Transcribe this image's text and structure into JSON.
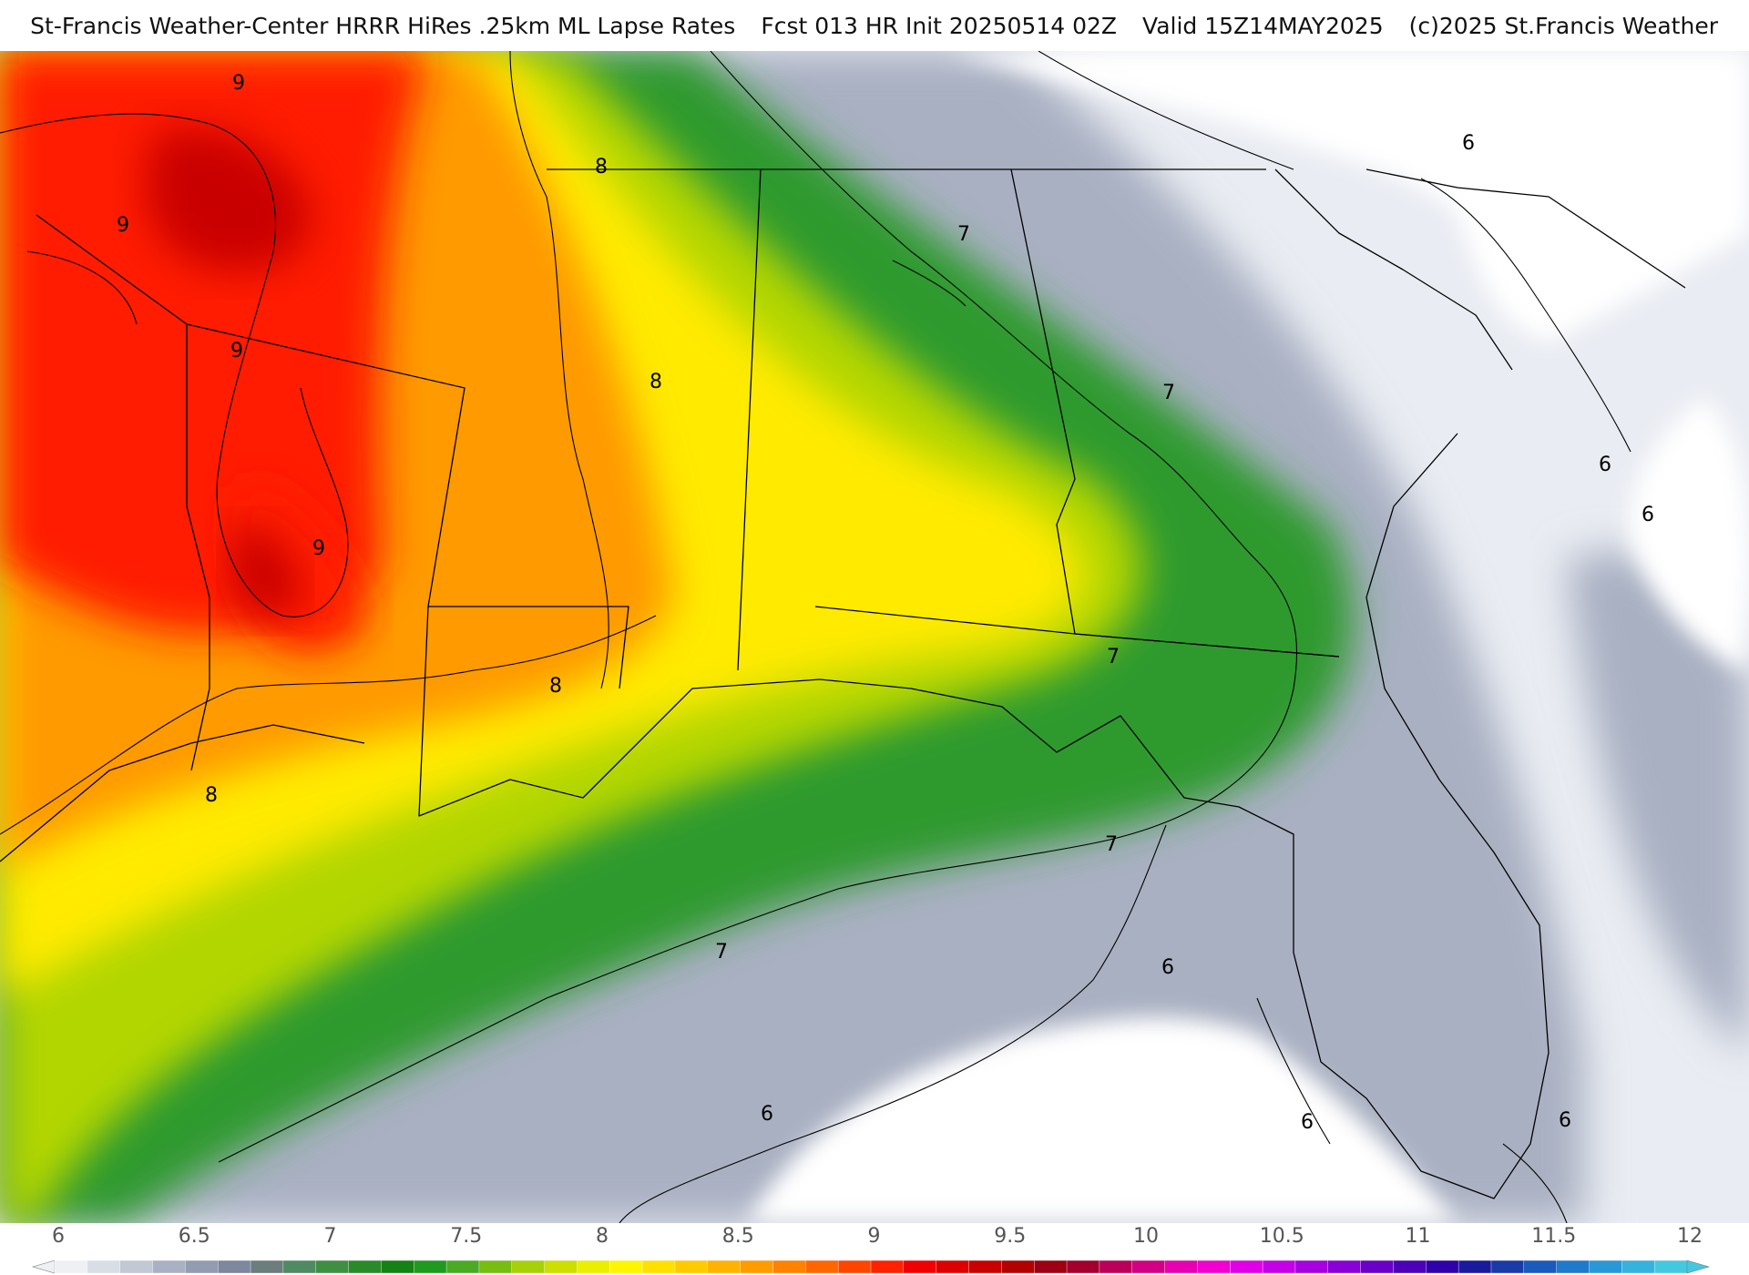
{
  "header": {
    "source": "St-Francis Weather-Center HRRR HiRes .25km ML Lapse Rates",
    "forecast": "Fcst 013 HR Init 20250514 02Z",
    "valid": "Valid 15Z14MAY2025",
    "copyright": "(c)2025 St.Francis Weather"
  },
  "map": {
    "contour_labels": [
      "9",
      "9",
      "9",
      "9",
      "8",
      "8",
      "8",
      "8",
      "7",
      "7",
      "7",
      "7",
      "7",
      "6",
      "6",
      "6",
      "6",
      "6",
      "6",
      "6"
    ],
    "shading": {
      "6": "#e9ecf2",
      "6.5": "#a9b0c2",
      "7": "#2f9a2f",
      "7.5": "#b2d600",
      "8": "#ffea00",
      "8.5": "#ff9a00",
      "9": "#ff1a00",
      "9.5": "#c90000"
    },
    "land_color": "#ffffff",
    "boundary_color": "#000000"
  },
  "colorbar": {
    "ticks": [
      "6",
      "6.5",
      "7",
      "7.5",
      "8",
      "8.5",
      "9",
      "9.5",
      "10",
      "10.5",
      "11",
      "11.5",
      "12"
    ],
    "colors": [
      "#eef0f4",
      "#d9dde6",
      "#c2c8d4",
      "#aab1c2",
      "#939cb0",
      "#7d879d",
      "#6b7d7c",
      "#4f8a62",
      "#3f8f43",
      "#2a8a2a",
      "#148214",
      "#1f9a1f",
      "#4aaa24",
      "#78bd12",
      "#a6d10a",
      "#ccdf00",
      "#ecee00",
      "#fff500",
      "#ffe000",
      "#ffcb00",
      "#ffb300",
      "#ff9c00",
      "#ff8200",
      "#ff6600",
      "#ff4600",
      "#ff2200",
      "#f00000",
      "#dd0000",
      "#c80000",
      "#b30000",
      "#9c0012",
      "#a3002e",
      "#bb005a",
      "#d20084",
      "#e600b0",
      "#f200d2",
      "#e000e6",
      "#c400e6",
      "#a600e0",
      "#8800d6",
      "#6a00c8",
      "#4c00b8",
      "#3000a8",
      "#1a1a9c",
      "#1a3aa8",
      "#1a5abb",
      "#1f7acb",
      "#2a98d6",
      "#36b2dc",
      "#44c8df"
    ]
  }
}
